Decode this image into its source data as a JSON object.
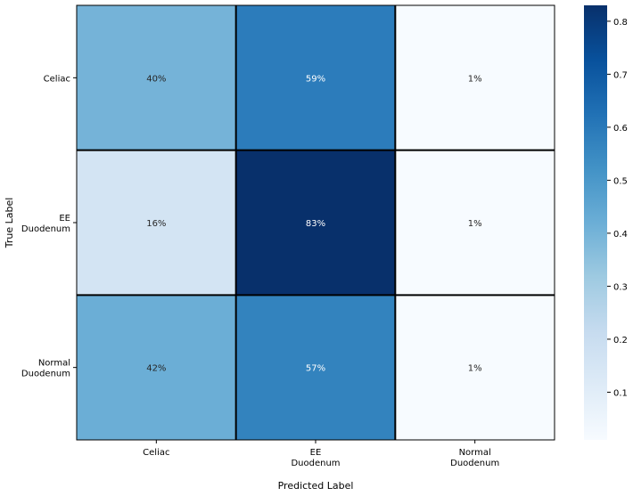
{
  "chart_data": {
    "type": "heatmap",
    "title": "",
    "xlabel": "Predicted Label",
    "ylabel": "True Label",
    "x_categories": [
      [
        "Celiac"
      ],
      [
        "EE",
        "Duodenum"
      ],
      [
        "Normal",
        "Duodenum"
      ]
    ],
    "y_categories": [
      [
        "Celiac"
      ],
      [
        "EE",
        "Duodenum"
      ],
      [
        "Normal",
        "Duodenum"
      ]
    ],
    "values": [
      [
        0.4,
        0.59,
        0.01
      ],
      [
        0.16,
        0.83,
        0.01
      ],
      [
        0.42,
        0.57,
        0.01
      ]
    ],
    "cell_labels": [
      [
        "40%",
        "59%",
        "1%"
      ],
      [
        "16%",
        "83%",
        "1%"
      ],
      [
        "42%",
        "57%",
        "1%"
      ]
    ],
    "colormap": "Blues",
    "vmin": 0.01,
    "vmax": 0.83,
    "colorbar_ticks": [
      "0.1",
      "0.2",
      "0.3",
      "0.4",
      "0.5",
      "0.6",
      "0.7",
      "0.8"
    ],
    "colorbar_tick_values": [
      0.1,
      0.2,
      0.3,
      0.4,
      0.5,
      0.6,
      0.7,
      0.8
    ],
    "grid": true,
    "grid_color": "#000000",
    "legend": "colorbar-right"
  }
}
